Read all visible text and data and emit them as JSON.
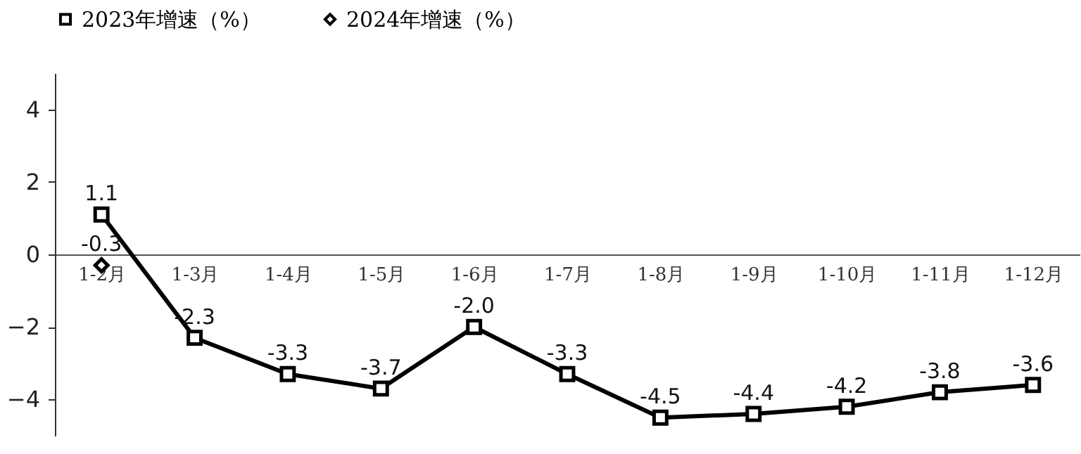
{
  "chart_data": {
    "type": "line",
    "categories": [
      "1-2月",
      "1-3月",
      "1-4月",
      "1-5月",
      "1-6月",
      "1-7月",
      "1-8月",
      "1-9月",
      "1-10月",
      "1-11月",
      "1-12月"
    ],
    "series": [
      {
        "name": "2023年增速（%）",
        "color": "#000000",
        "marker": "square",
        "values": [
          1.1,
          -2.3,
          -3.3,
          -3.7,
          -2.0,
          -3.3,
          -4.5,
          -4.4,
          -4.2,
          -3.8,
          -3.6
        ],
        "value_labels": [
          "1.1",
          "-2.3",
          "-3.3",
          "-3.7",
          "-2.0",
          "-3.3",
          "-4.5",
          "-4.4",
          "-4.2",
          "-3.8",
          "-3.6"
        ]
      },
      {
        "name": "2024年增速（%）",
        "color": "#000000",
        "marker": "diamond",
        "values": [
          -0.3,
          null,
          null,
          null,
          null,
          null,
          null,
          null,
          null,
          null,
          null
        ],
        "value_labels": [
          "-0.3",
          null,
          null,
          null,
          null,
          null,
          null,
          null,
          null,
          null,
          null
        ]
      }
    ],
    "ylim": [
      -5,
      5
    ],
    "yticks": [
      -4,
      -2,
      0,
      2,
      4
    ],
    "grid": false,
    "legend": "top",
    "line_style": "solid"
  }
}
